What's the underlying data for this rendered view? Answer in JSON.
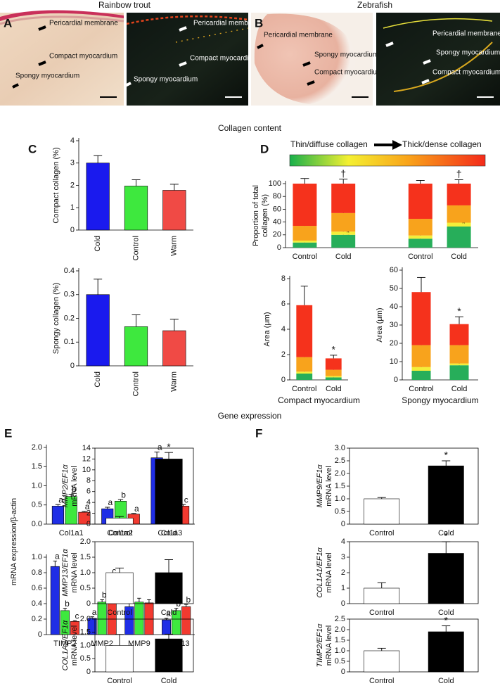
{
  "figure": {
    "species": [
      "Rainbow trout",
      "Zebrafish"
    ],
    "panels": [
      "A",
      "B",
      "C",
      "D",
      "E",
      "F"
    ],
    "sections": [
      "Collagen content",
      "Gene expression"
    ],
    "micrographs": [
      {
        "labels": [
          "Pericardial membrane",
          "Compact myocardium",
          "Spongy myocardium"
        ]
      },
      {
        "labels": [
          "Pericardial membrane",
          "Compact myocardium",
          "Spongy myocardium"
        ]
      },
      {
        "labels": [
          "Pericardial membrane",
          "Spongy myocardium",
          "Compact myocardium"
        ]
      },
      {
        "labels": [
          "Pericardial membrane",
          "Spongy myocardium",
          "Compact myocardium"
        ]
      }
    ],
    "collagen_scale": [
      "Thin/diffuse collagen",
      "Thick/dense collagen"
    ]
  },
  "chart_data": [
    {
      "type": "bar",
      "ylabel": "Compact collagen (%)",
      "categories": [
        "Cold",
        "Control",
        "Warm"
      ],
      "series": [
        {
          "colors": [
            "#1a1aee",
            "#3ee83e",
            "#f04a45"
          ],
          "values": [
            3.0,
            1.97,
            1.78
          ],
          "errors": [
            0.33,
            0.28,
            0.27
          ]
        }
      ],
      "ylim": [
        0,
        4
      ],
      "yticks": [
        0,
        1,
        2,
        3,
        4
      ]
    },
    {
      "type": "bar",
      "ylabel": "Spongy collagen (%)",
      "categories": [
        "Cold",
        "Control",
        "Warm"
      ],
      "series": [
        {
          "colors": [
            "#1a1aee",
            "#3ee83e",
            "#f04a45"
          ],
          "values": [
            0.3,
            0.165,
            0.148
          ],
          "errors": [
            0.065,
            0.05,
            0.048
          ]
        }
      ],
      "ylim": [
        0,
        0.4
      ],
      "yticks": [
        0,
        0.1,
        0.2,
        0.3,
        0.4
      ]
    },
    {
      "type": "stacked_bar",
      "ylabel": [
        "Proportion of total",
        "collagen (%)"
      ],
      "categories": [
        "Control",
        "Cold",
        "Control",
        "Cold"
      ],
      "series": [
        {
          "color": "#27ae5a",
          "values": [
            8,
            20,
            14,
            33
          ],
          "errors": [
            2,
            3,
            3,
            5
          ],
          "marks": [
            null,
            "*",
            null,
            null
          ]
        },
        {
          "color": "#f3ee3a",
          "values": [
            3,
            5,
            5,
            6
          ],
          "errors": [
            1,
            2,
            1,
            2
          ],
          "marks": [
            null,
            "*",
            null,
            "*"
          ]
        },
        {
          "color": "#f8a31c",
          "values": [
            23,
            29,
            26,
            27
          ],
          "errors": [
            3,
            3,
            2,
            2
          ],
          "marks": [
            null,
            null,
            null,
            null
          ]
        },
        {
          "color": "#f5321c",
          "values": [
            66,
            46,
            55,
            34
          ],
          "errors": [
            8,
            7,
            5,
            6
          ],
          "marks": [
            null,
            null,
            null,
            null
          ]
        }
      ],
      "top_marks": [
        null,
        "†",
        null,
        "†"
      ],
      "ylim": [
        0,
        100
      ],
      "yticks": [
        0,
        20,
        40,
        60,
        80,
        100
      ]
    },
    {
      "type": "stacked_bar",
      "ylabel": "Area (μm)",
      "xlabel": "Compact myocardium",
      "categories": [
        "Control",
        "Cold"
      ],
      "series": [
        {
          "color": "#27ae5a",
          "values": [
            0.5,
            0.2
          ],
          "errors": [
            0.1,
            0.05
          ]
        },
        {
          "color": "#f3ee3a",
          "values": [
            0.15,
            0.1
          ],
          "errors": [
            0.05,
            0.03
          ]
        },
        {
          "color": "#f8a31c",
          "values": [
            1.15,
            0.5
          ],
          "errors": [
            0.4,
            0.15
          ]
        },
        {
          "color": "#f5321c",
          "values": [
            4.1,
            0.9
          ],
          "errors": [
            1.5,
            0.25
          ]
        }
      ],
      "top_marks": [
        null,
        "*"
      ],
      "ylim": [
        0,
        8
      ],
      "yticks": [
        0,
        2,
        4,
        6,
        8
      ]
    },
    {
      "type": "stacked_bar",
      "ylabel": "Area (μm)",
      "xlabel": "Spongy myocardium",
      "categories": [
        "Control",
        "Cold"
      ],
      "series": [
        {
          "color": "#27ae5a",
          "values": [
            5,
            8
          ],
          "errors": [
            1,
            2
          ]
        },
        {
          "color": "#f3ee3a",
          "values": [
            2,
            1
          ],
          "errors": [
            0.5,
            0.5
          ]
        },
        {
          "color": "#f8a31c",
          "values": [
            12,
            10
          ],
          "errors": [
            3,
            1
          ]
        },
        {
          "color": "#f5321c",
          "values": [
            29,
            11.5
          ],
          "errors": [
            8,
            4
          ]
        }
      ],
      "top_marks": [
        null,
        "*"
      ],
      "ylim": [
        0,
        60
      ],
      "yticks": [
        0,
        10,
        20,
        30,
        40,
        50,
        60
      ]
    },
    {
      "type": "bar",
      "ylabel": "mRNA expression/β-actin",
      "categories": [
        "Col1a1",
        "Col1a2",
        "Col1a3"
      ],
      "series": [
        {
          "color": "#1f2ee6",
          "values": [
            0.47,
            0.4,
            1.73
          ],
          "errors": [
            0.04,
            0.04,
            0.15
          ],
          "letters": [
            "a",
            "a",
            "a"
          ]
        },
        {
          "color": "#3ee83e",
          "values": [
            0.72,
            0.6,
            0.92
          ],
          "errors": [
            0.06,
            0.04,
            0.08
          ],
          "letters": [
            "b",
            "b",
            "b"
          ]
        },
        {
          "color": "#f23a30",
          "values": [
            0.31,
            0.26,
            0.47
          ],
          "errors": [
            0.02,
            0.02,
            0.04
          ],
          "letters": [
            "a",
            "a",
            "c"
          ]
        }
      ],
      "ylim": [
        0,
        2
      ],
      "yticks": [
        {
          "value": 0,
          "label": "0.0"
        },
        0.5,
        {
          "value": 1,
          "label": "1.0"
        },
        1.5,
        {
          "value": 2,
          "label": "2.0"
        }
      ]
    },
    {
      "type": "bar",
      "categories": [
        "TIMP2",
        "MMP2",
        "MMP9",
        "MMP13"
      ],
      "series": [
        {
          "color": "#1f2ee6",
          "values": [
            0.88,
            0.21,
            0.36,
            0.19
          ],
          "errors": [
            0.07,
            0.02,
            0.04,
            0.02
          ],
          "letters": [
            "a",
            "a",
            null,
            "a"
          ]
        },
        {
          "color": "#3ee83e",
          "values": [
            0.31,
            0.42,
            0.42,
            0.31
          ],
          "errors": [
            0.03,
            0.03,
            0.05,
            0.03
          ],
          "letters": [
            "b",
            "b",
            null,
            "b"
          ]
        },
        {
          "color": "#f23a30",
          "values": [
            0.17,
            0.71,
            0.41,
            0.36
          ],
          "errors": [
            0.01,
            0.05,
            0.04,
            0.03
          ],
          "letters": [
            "c",
            "c",
            null,
            "b"
          ]
        }
      ],
      "ylim": [
        0,
        1
      ],
      "yticks": [
        0,
        0.2,
        0.4,
        0.6,
        0.8,
        {
          "value": 1,
          "label": "1.0"
        }
      ]
    },
    {
      "type": "bar",
      "ylabel": [
        "MMP2/EF1α",
        "mRNA level"
      ],
      "categories": [
        "Control",
        "Cold"
      ],
      "series": [
        {
          "colors": [
            "#ffffff",
            "#000000"
          ],
          "values": [
            1.1,
            12.0
          ],
          "errors": [
            0.3,
            1.2
          ]
        }
      ],
      "top_marks": [
        null,
        "*"
      ],
      "ylim": [
        0,
        14
      ],
      "yticks": [
        0,
        2,
        4,
        6,
        8,
        10,
        12,
        14
      ]
    },
    {
      "type": "bar",
      "ylabel": [
        "MMP9/EF1α",
        "mRNA level"
      ],
      "categories": [
        "Control",
        "Cold"
      ],
      "series": [
        {
          "colors": [
            "#ffffff",
            "#000000"
          ],
          "values": [
            1.0,
            2.3
          ],
          "errors": [
            0.05,
            0.2
          ]
        }
      ],
      "top_marks": [
        null,
        "*"
      ],
      "ylim": [
        0,
        3
      ],
      "yticks": [
        0,
        0.5,
        {
          "value": 1,
          "label": "1.0"
        },
        1.5,
        {
          "value": 2,
          "label": "2.0"
        },
        2.5,
        {
          "value": 3,
          "label": "3.0"
        }
      ]
    },
    {
      "type": "bar",
      "ylabel": [
        "MMP13/EF1α",
        "mRNA level"
      ],
      "categories": [
        "Control",
        "Cold"
      ],
      "series": [
        {
          "colors": [
            "#ffffff",
            "#000000"
          ],
          "values": [
            1.0,
            1.0
          ],
          "errors": [
            0.15,
            0.42
          ]
        }
      ],
      "ylim": [
        0,
        2
      ],
      "yticks": [
        0,
        0.5,
        {
          "value": 1,
          "label": "1.0"
        },
        1.5,
        {
          "value": 2,
          "label": "2.0"
        }
      ]
    },
    {
      "type": "bar",
      "ylabel": [
        "COL1A1/EF1α",
        "mRNA level"
      ],
      "categories": [
        "Control",
        "Cold"
      ],
      "series": [
        {
          "colors": [
            "#ffffff",
            "#000000"
          ],
          "values": [
            1.0,
            3.25
          ],
          "errors": [
            0.35,
            0.75
          ]
        }
      ],
      "top_marks": [
        null,
        "*"
      ],
      "ylim": [
        0,
        4
      ],
      "yticks": [
        0,
        1,
        2,
        3,
        4
      ]
    },
    {
      "type": "bar",
      "ylabel": [
        "COL1A2/EF1α",
        "mRNA level"
      ],
      "categories": [
        "Control",
        "Cold"
      ],
      "series": [
        {
          "colors": [
            "#ffffff",
            "#000000"
          ],
          "values": [
            1.0,
            1.25
          ],
          "errors": [
            0.42,
            0.18
          ]
        }
      ],
      "ylim": [
        0,
        2
      ],
      "yticks": [
        0,
        0.5,
        {
          "value": 1,
          "label": "1.0"
        },
        1.5,
        {
          "value": 2,
          "label": "2.0"
        }
      ]
    },
    {
      "type": "bar",
      "ylabel": [
        "TIMP2/EF1α",
        "mRNA level"
      ],
      "categories": [
        "Control",
        "Cold"
      ],
      "series": [
        {
          "colors": [
            "#ffffff",
            "#000000"
          ],
          "values": [
            1.0,
            1.9
          ],
          "errors": [
            0.12,
            0.28
          ]
        }
      ],
      "top_marks": [
        null,
        "*"
      ],
      "ylim": [
        0,
        2.5
      ],
      "yticks": [
        0,
        0.5,
        {
          "value": 1,
          "label": "1.0"
        },
        1.5,
        {
          "value": 2,
          "label": "2.0"
        },
        2.5
      ]
    }
  ]
}
